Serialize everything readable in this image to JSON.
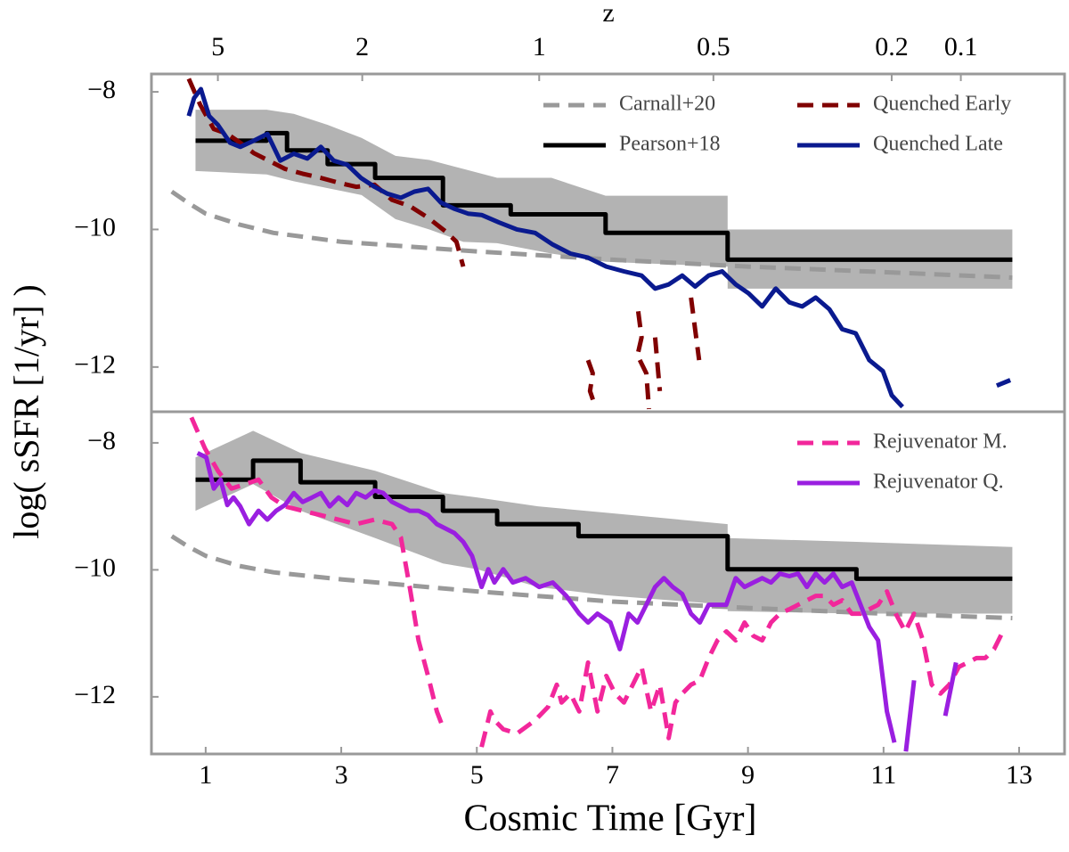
{
  "chart_data": [
    {
      "type": "line",
      "ylabel": "log( sSFR [1/yr] )",
      "x2label": "z",
      "xlim": [
        0.2,
        13.67
      ],
      "ylim": [
        -12.65,
        -7.74
      ],
      "yticks": [
        {
          "value": -8,
          "label": "−8"
        },
        {
          "value": -10,
          "label": "−10"
        },
        {
          "value": -12,
          "label": "−12"
        }
      ],
      "x2ticks": [
        {
          "value": 1.18,
          "label": "5"
        },
        {
          "value": 3.31,
          "label": "2"
        },
        {
          "value": 5.92,
          "label": "1"
        },
        {
          "value": 8.49,
          "label": "0.5"
        },
        {
          "value": 11.12,
          "label": "0.2"
        },
        {
          "value": 12.14,
          "label": "0.1"
        }
      ],
      "band": {
        "color": "#b3b3b3",
        "x": [
          0.85,
          1.9,
          2.3,
          2.8,
          3.3,
          3.8,
          4.3,
          4.8,
          5.3,
          6.1,
          6.9,
          8.7,
          8.7,
          12.9
        ],
        "upper": [
          -8.26,
          -8.26,
          -8.32,
          -8.48,
          -8.67,
          -8.93,
          -8.99,
          -9.12,
          -9.25,
          -9.25,
          -9.51,
          -9.51,
          -10.0,
          -10.0
        ],
        "lower": [
          -9.15,
          -9.2,
          -9.3,
          -9.4,
          -9.5,
          -9.85,
          -10.0,
          -10.18,
          -10.2,
          -10.35,
          -10.47,
          -10.54,
          -10.86,
          -10.86
        ]
      },
      "series": [
        {
          "name": "Carnall+20",
          "color": "#999999",
          "dash": true,
          "x": [
            0.5,
            0.75,
            1,
            1.5,
            2,
            3,
            5,
            7,
            9,
            11,
            12.9
          ],
          "values": [
            -9.45,
            -9.62,
            -9.77,
            -9.93,
            -10.05,
            -10.18,
            -10.32,
            -10.44,
            -10.54,
            -10.62,
            -10.7
          ]
        },
        {
          "name": "Pearson+18",
          "color": "#000000",
          "dash": false,
          "x": [
            0.85,
            1.9,
            1.9,
            2.2,
            2.2,
            2.8,
            2.8,
            3.5,
            3.5,
            4.5,
            4.5,
            5.5,
            5.5,
            6.9,
            6.9,
            8.7,
            8.7,
            12.9
          ],
          "values": [
            -8.71,
            -8.71,
            -8.6,
            -8.6,
            -8.85,
            -8.85,
            -9.05,
            -9.05,
            -9.25,
            -9.25,
            -9.65,
            -9.65,
            -9.78,
            -9.78,
            -10.05,
            -10.05,
            -10.44,
            -10.44
          ]
        },
        {
          "name": "Quenched Early",
          "color": "#800000",
          "dash": true,
          "x": [
            0.75,
            0.92,
            1.12,
            1.32,
            1.51,
            1.71,
            1.91,
            2.17,
            2.43,
            2.7,
            2.96,
            3.22,
            3.49,
            3.75,
            4.01,
            4.28,
            4.54,
            4.7,
            4.8,
            5.5,
            6.64,
            6.71,
            6.67,
            6.75,
            7.0,
            7.38,
            7.43,
            7.37,
            7.5,
            7.54,
            7.58,
            7.63,
            7.7,
            7.9,
            8.16,
            8.22,
            8.28
          ],
          "values": [
            -7.81,
            -8.19,
            -8.54,
            -8.61,
            -8.74,
            -8.89,
            -8.99,
            -9.12,
            -9.19,
            -9.25,
            -9.32,
            -9.38,
            -9.35,
            -9.57,
            -9.66,
            -9.83,
            -10.03,
            -10.18,
            -10.54,
            null,
            -11.9,
            -12.09,
            -12.35,
            -12.58,
            null,
            -11.19,
            -11.57,
            -11.83,
            -12.09,
            -12.61,
            null,
            -11.57,
            -12.35,
            null,
            -10.99,
            -11.45,
            -11.9
          ]
        },
        {
          "name": "Quenched Late",
          "color": "#0a1a8f",
          "dash": false,
          "x": [
            0.75,
            0.83,
            0.93,
            1.05,
            1.18,
            1.36,
            1.51,
            1.71,
            1.91,
            2.1,
            2.3,
            2.5,
            2.7,
            2.89,
            3.09,
            3.29,
            3.49,
            3.68,
            3.88,
            4.08,
            4.28,
            4.47,
            4.67,
            4.87,
            5.07,
            5.33,
            5.59,
            5.86,
            6.12,
            6.38,
            6.64,
            6.91,
            7.17,
            7.43,
            7.63,
            7.83,
            8.03,
            8.22,
            8.42,
            8.62,
            8.82,
            9.01,
            9.21,
            9.41,
            9.61,
            9.8,
            10.0,
            10.2,
            10.39,
            10.59,
            10.79,
            10.99,
            11.12,
            11.28,
            12.0,
            12.67,
            12.87
          ],
          "values": [
            -8.35,
            -8.09,
            -7.96,
            -8.35,
            -8.48,
            -8.74,
            -8.8,
            -8.71,
            -8.61,
            -9.0,
            -8.9,
            -8.97,
            -8.8,
            -9.0,
            -9.06,
            -9.25,
            -9.38,
            -9.48,
            -9.54,
            -9.45,
            -9.41,
            -9.61,
            -9.7,
            -9.77,
            -9.79,
            -9.9,
            -10.0,
            -10.05,
            -10.22,
            -10.35,
            -10.41,
            -10.54,
            -10.61,
            -10.67,
            -10.86,
            -10.8,
            -10.67,
            -10.83,
            -10.67,
            -10.61,
            -10.8,
            -10.93,
            -11.12,
            -10.86,
            -11.06,
            -11.12,
            -10.99,
            -11.16,
            -11.45,
            -11.51,
            -11.9,
            -12.06,
            -12.41,
            -12.58,
            null,
            -12.27,
            -12.19
          ]
        }
      ]
    },
    {
      "type": "line",
      "xlabel": "Cosmic Time [Gyr]",
      "xlim": [
        0.2,
        13.67
      ],
      "ylim": [
        -12.9,
        -7.51
      ],
      "xticks": [
        1,
        3,
        5,
        7,
        9,
        11,
        13
      ],
      "yticks": [
        {
          "value": -8,
          "label": "−8"
        },
        {
          "value": -10,
          "label": "−10"
        },
        {
          "value": -12,
          "label": "−12"
        }
      ],
      "band": {
        "color": "#b3b3b3",
        "x": [
          0.85,
          1.7,
          2.4,
          3.5,
          4.5,
          5.0,
          5.9,
          6.9,
          8.7,
          8.7,
          10.6,
          12.9
        ],
        "upper": [
          -8.23,
          -7.81,
          -8.16,
          -8.44,
          -8.79,
          -8.86,
          -9.0,
          -9.1,
          -9.28,
          -9.5,
          -9.56,
          -9.64
        ],
        "lower": [
          -9.07,
          -8.65,
          -9.07,
          -9.5,
          -9.9,
          -9.99,
          -10.27,
          -10.4,
          -10.55,
          -10.65,
          -10.69,
          -10.69
        ]
      },
      "series": [
        {
          "color": "#999999",
          "dash": true,
          "x": [
            0.5,
            0.75,
            1,
            1.5,
            2,
            3,
            5,
            7,
            9,
            11,
            12.9
          ],
          "values": [
            -9.47,
            -9.64,
            -9.78,
            -9.94,
            -10.04,
            -10.15,
            -10.34,
            -10.5,
            -10.6,
            -10.69,
            -10.76
          ]
        },
        {
          "color": "#000000",
          "dash": false,
          "x": [
            0.85,
            1.7,
            1.7,
            2.4,
            2.4,
            3.5,
            3.5,
            4.5,
            4.5,
            5.3,
            5.3,
            6.5,
            6.5,
            8.7,
            8.7,
            10.6,
            10.6,
            12.9
          ],
          "values": [
            -8.58,
            -8.58,
            -8.28,
            -8.28,
            -8.62,
            -8.62,
            -8.85,
            -8.85,
            -9.07,
            -9.07,
            -9.28,
            -9.28,
            -9.47,
            -9.47,
            -9.99,
            -9.99,
            -10.14,
            -10.14
          ]
        },
        {
          "name": "Rejuvenator M.",
          "color": "#f2279b",
          "dash": true,
          "x": [
            0.79,
            0.99,
            1.18,
            1.38,
            1.58,
            1.78,
            1.97,
            2.17,
            2.43,
            2.7,
            2.96,
            3.22,
            3.49,
            3.75,
            3.88,
            4.01,
            4.14,
            4.28,
            4.41,
            4.51,
            4.8,
            5.07,
            5.2,
            5.26,
            5.39,
            5.59,
            5.86,
            6.05,
            6.18,
            6.25,
            6.38,
            6.51,
            6.64,
            6.78,
            6.91,
            7.04,
            7.17,
            7.3,
            7.43,
            7.57,
            7.7,
            7.83,
            7.93,
            8.03,
            8.16,
            8.29,
            8.42,
            8.55,
            8.68,
            8.82,
            8.95,
            9.08,
            9.21,
            9.34,
            9.47,
            9.61,
            9.74,
            9.87,
            10.0,
            10.13,
            10.26,
            10.39,
            10.53,
            10.66,
            10.79,
            10.92,
            11.05,
            11.18,
            11.32,
            11.45,
            11.58,
            11.71,
            11.84,
            11.97,
            12.11,
            12.24,
            12.37,
            12.5,
            12.63,
            12.76
          ],
          "values": [
            -7.6,
            -8.09,
            -8.44,
            -8.72,
            -8.65,
            -8.58,
            -8.86,
            -9.0,
            -9.07,
            -9.14,
            -9.21,
            -9.28,
            -9.21,
            -9.28,
            -9.49,
            -10.27,
            -11.11,
            -11.67,
            -12.23,
            -12.51,
            null,
            -12.79,
            -12.23,
            -12.37,
            -12.51,
            -12.58,
            -12.37,
            -12.16,
            -11.81,
            -12.09,
            -11.95,
            -12.23,
            -11.46,
            -12.23,
            -11.67,
            -11.95,
            -12.09,
            -11.81,
            -11.53,
            -12.23,
            -11.81,
            -12.65,
            -12.09,
            -11.95,
            -11.81,
            -11.74,
            -11.39,
            -11.11,
            -10.97,
            -11.11,
            -10.83,
            -11.04,
            -11.11,
            -10.83,
            -10.69,
            -10.62,
            -10.55,
            -10.48,
            -10.41,
            -10.41,
            -10.55,
            -10.48,
            -10.69,
            -10.69,
            -10.62,
            -10.55,
            -10.34,
            -10.69,
            -10.97,
            -10.69,
            -11.11,
            -11.81,
            -11.95,
            -11.81,
            -11.53,
            -11.46,
            -11.39,
            -11.39,
            -11.25,
            -10.97
          ]
        },
        {
          "name": "Rejuvenator Q.",
          "color": "#9a1fe0",
          "dash": false,
          "x": [
            0.88,
            1.01,
            1.12,
            1.22,
            1.32,
            1.41,
            1.51,
            1.64,
            1.78,
            1.91,
            2.04,
            2.17,
            2.3,
            2.43,
            2.57,
            2.7,
            2.83,
            2.96,
            3.09,
            3.22,
            3.36,
            3.49,
            3.62,
            3.75,
            3.88,
            4.01,
            4.14,
            4.28,
            4.41,
            4.54,
            4.67,
            4.8,
            4.93,
            5.07,
            5.17,
            5.26,
            5.39,
            5.53,
            5.72,
            5.92,
            6.12,
            6.32,
            6.51,
            6.64,
            6.78,
            6.97,
            7.11,
            7.24,
            7.37,
            7.5,
            7.63,
            7.76,
            7.89,
            8.03,
            8.16,
            8.29,
            8.42,
            8.55,
            8.68,
            8.82,
            8.95,
            9.08,
            9.21,
            9.34,
            9.47,
            9.61,
            9.74,
            9.87,
            10.0,
            10.13,
            10.26,
            10.39,
            10.53,
            10.66,
            10.79,
            10.92,
            11.05,
            11.16,
            11.2,
            11.33,
            11.45,
            11.7,
            11.91,
            12.07
          ],
          "values": [
            -8.16,
            -8.23,
            -8.72,
            -8.58,
            -8.98,
            -8.86,
            -9.0,
            -9.28,
            -9.07,
            -9.21,
            -9.07,
            -8.98,
            -8.79,
            -8.93,
            -8.86,
            -8.79,
            -9.0,
            -8.86,
            -8.98,
            -8.79,
            -8.86,
            -8.75,
            -8.79,
            -8.93,
            -9.0,
            -9.07,
            -9.07,
            -9.14,
            -9.28,
            -9.35,
            -9.42,
            -9.56,
            -9.78,
            -10.27,
            -9.99,
            -10.2,
            -9.99,
            -10.2,
            -10.13,
            -10.27,
            -10.2,
            -10.41,
            -10.69,
            -10.83,
            -10.69,
            -10.83,
            -11.25,
            -10.69,
            -10.83,
            -10.55,
            -10.27,
            -10.13,
            -10.27,
            -10.38,
            -10.69,
            -10.83,
            -10.55,
            -10.55,
            -10.55,
            -10.13,
            -10.27,
            -10.2,
            -10.13,
            -10.2,
            -10.06,
            -10.1,
            -10.06,
            -10.27,
            -10.06,
            -10.2,
            -10.06,
            -10.27,
            -10.2,
            -10.55,
            -10.9,
            -11.11,
            -12.23,
            -12.72,
            null,
            -12.86,
            -11.74,
            null,
            -12.3,
            -11.46
          ]
        }
      ]
    }
  ]
}
